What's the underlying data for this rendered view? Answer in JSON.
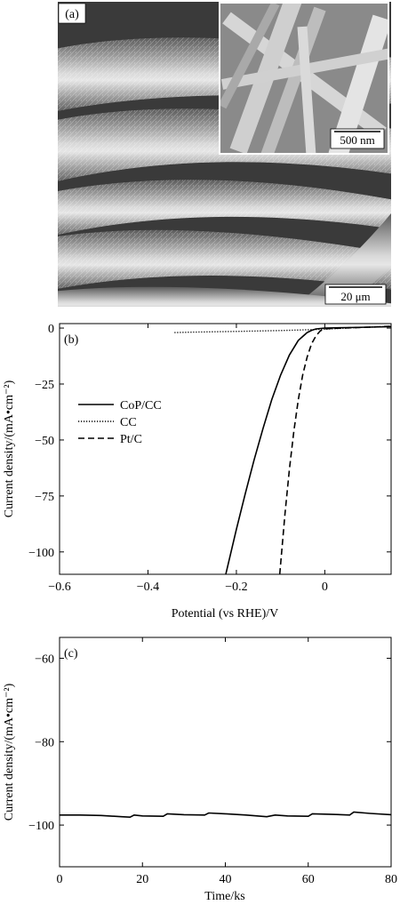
{
  "panel_a": {
    "label": "(a)",
    "inset_scale": "500 nm",
    "main_scale": "20 μm"
  },
  "chart_data": [
    {
      "type": "line",
      "panel": "(b)",
      "xlabel": "Potential (vs RHE)/V",
      "ylabel": "Current density/(mA•cm⁻²)",
      "xlim": [
        -0.6,
        0.15
      ],
      "ylim": [
        -110,
        2
      ],
      "xticks": [
        -0.6,
        -0.4,
        -0.2,
        0
      ],
      "xtick_labels": [
        "−0.6",
        "−0.4",
        "−0.2",
        "0"
      ],
      "yticks": [
        0,
        -25,
        -50,
        -75,
        -100
      ],
      "ytick_labels": [
        "0",
        "−25",
        "−50",
        "−75",
        "−100"
      ],
      "legend_position": "middle-left",
      "series": [
        {
          "name": "CoP/CC",
          "style": "solid",
          "x": [
            -0.224,
            -0.2,
            -0.18,
            -0.16,
            -0.14,
            -0.12,
            -0.1,
            -0.08,
            -0.06,
            -0.04,
            -0.03,
            -0.02,
            0.0,
            0.05,
            0.1,
            0.15
          ],
          "y": [
            -110,
            -90,
            -74,
            -59,
            -45,
            -32,
            -21,
            -12,
            -5.5,
            -2.0,
            -1.0,
            -0.4,
            0,
            0.2,
            0.4,
            0.6
          ]
        },
        {
          "name": "CC",
          "style": "dotted",
          "x": [
            -0.34,
            -0.3,
            -0.2,
            -0.1,
            -0.05,
            0.0,
            0.05,
            0.1,
            0.15
          ],
          "y": [
            -2.0,
            -1.8,
            -1.5,
            -1.1,
            -0.8,
            -0.5,
            0,
            0.4,
            0.8
          ]
        },
        {
          "name": "Pt/C",
          "style": "dashed",
          "x": [
            -0.102,
            -0.09,
            -0.08,
            -0.07,
            -0.06,
            -0.05,
            -0.04,
            -0.03,
            -0.02,
            -0.01,
            0.0,
            0.05,
            0.1,
            0.15
          ],
          "y": [
            -110,
            -83,
            -63,
            -46,
            -32,
            -21,
            -13,
            -7,
            -3.5,
            -1.2,
            -0.3,
            0.1,
            0.4,
            0.8
          ]
        }
      ]
    },
    {
      "type": "line",
      "panel": "(c)",
      "xlabel": "Time/ks",
      "ylabel": "Current density/(mA•cm⁻²)",
      "xlim": [
        0,
        80
      ],
      "ylim": [
        -110,
        -55
      ],
      "xticks": [
        0,
        20,
        40,
        60,
        80
      ],
      "xtick_labels": [
        "0",
        "20",
        "40",
        "60",
        "80"
      ],
      "yticks": [
        -60,
        -80,
        -100
      ],
      "ytick_labels": [
        "−60",
        "−80",
        "−100"
      ],
      "series": [
        {
          "style": "solid",
          "x": [
            0,
            5,
            10,
            15,
            17,
            18,
            20,
            25,
            26,
            30,
            35,
            36,
            40,
            45,
            50,
            52,
            55,
            60,
            61,
            65,
            70,
            71,
            75,
            80
          ],
          "y": [
            -97.6,
            -97.6,
            -97.7,
            -98.0,
            -98.1,
            -97.6,
            -97.8,
            -97.9,
            -97.3,
            -97.5,
            -97.6,
            -97.1,
            -97.3,
            -97.6,
            -98.0,
            -97.6,
            -97.8,
            -97.9,
            -97.3,
            -97.4,
            -97.6,
            -96.9,
            -97.2,
            -97.5
          ]
        }
      ]
    }
  ]
}
